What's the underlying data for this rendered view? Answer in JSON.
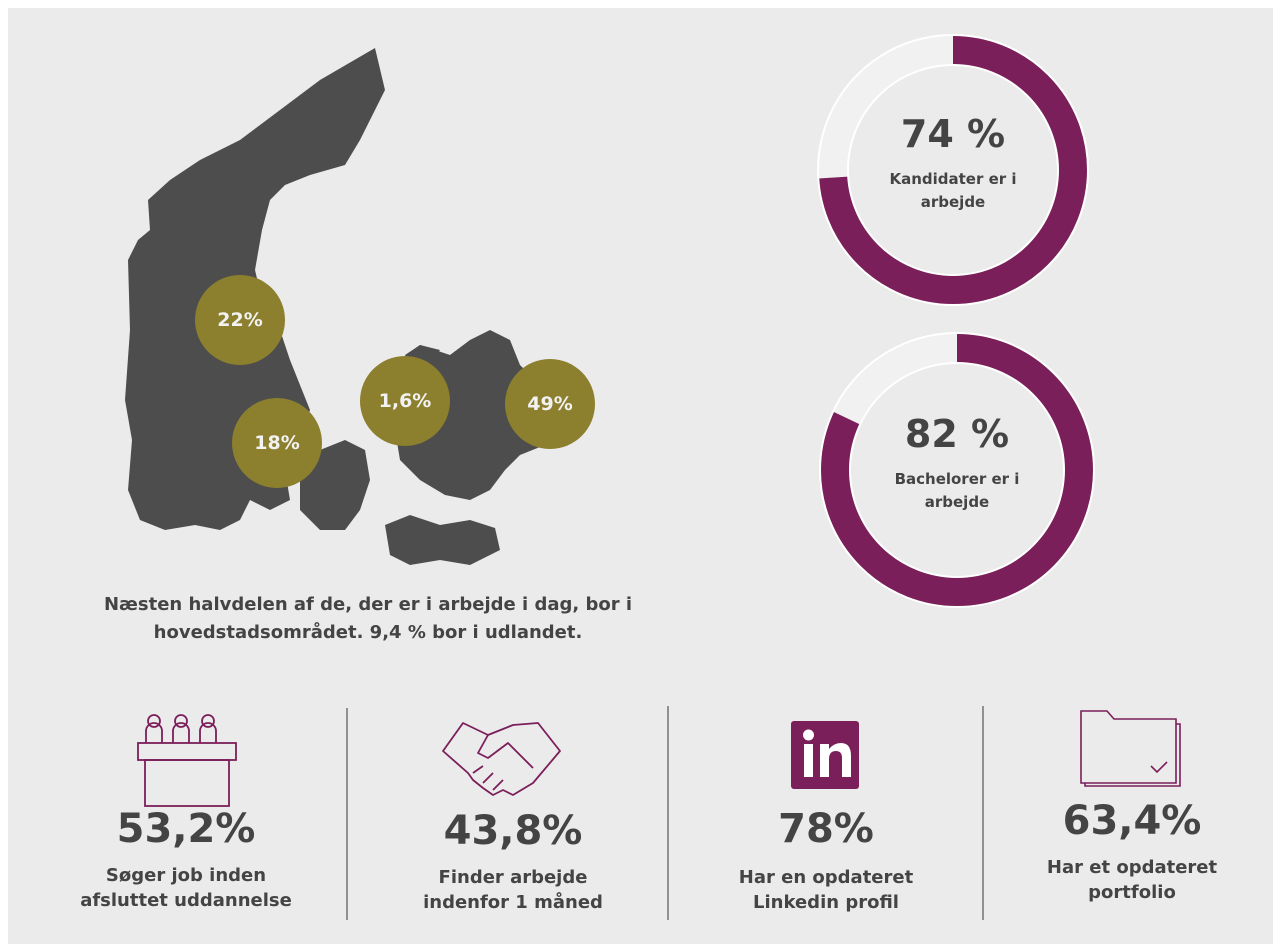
{
  "map": {
    "labels": [
      "22%",
      "18%",
      "1,6%",
      "49%"
    ],
    "caption": "Næsten halvdelen af de, der er i arbejde i dag, bor i hovedstadsområdet. 9,4 % bor i udlandet."
  },
  "donuts": [
    {
      "value": 74,
      "label": "74 %",
      "caption": "Kandidater er i arbejde",
      "color": "#7b1f5a"
    },
    {
      "value": 82,
      "label": "82 %",
      "caption": "Bachelorer er i arbejde",
      "color": "#7b1f5a"
    }
  ],
  "stats": [
    {
      "value": "53,2%",
      "caption": "Søger job inden afsluttet uddannelse"
    },
    {
      "value": "43,8%",
      "caption": "Finder arbejde indenfor 1 måned"
    },
    {
      "value": "78%",
      "caption": "Har en opdateret Linkedin profil"
    },
    {
      "value": "63,4%",
      "caption": "Har et opdateret portfolio"
    }
  ]
}
